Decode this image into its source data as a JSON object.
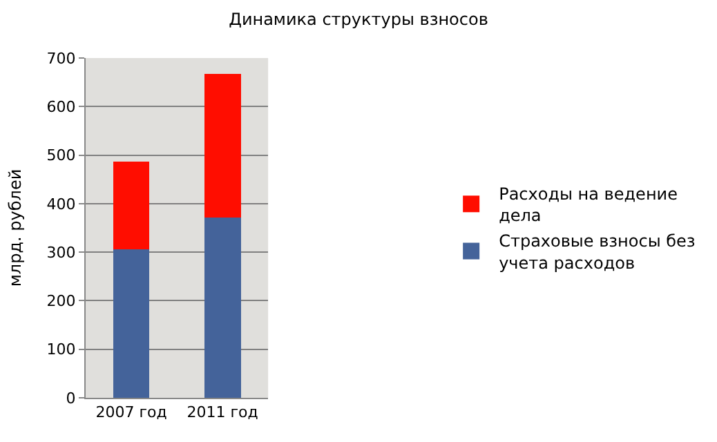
{
  "chart_data": {
    "type": "bar",
    "title": "Динамика структуры взносов",
    "ylabel": "млрд. рублей",
    "categories": [
      "2007 год",
      "2011 год"
    ],
    "series": [
      {
        "name": "Страховые взносы без учета расходов",
        "color": "#44639a",
        "values": [
          306,
          371
        ]
      },
      {
        "name": "Расходы на ведение дела",
        "color": "#ff0d00",
        "values": [
          180,
          296
        ]
      }
    ],
    "stacked": true,
    "ylim": [
      0,
      700
    ],
    "yticks": [
      0,
      100,
      200,
      300,
      400,
      500,
      600,
      700
    ],
    "grid": "y",
    "legend": "right"
  }
}
